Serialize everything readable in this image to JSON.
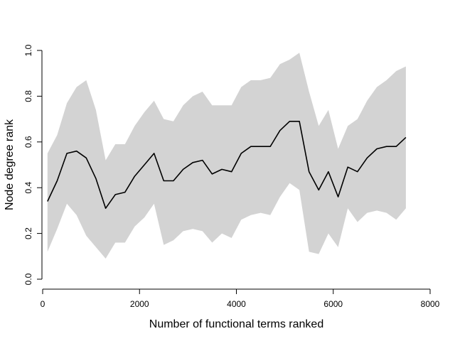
{
  "chart_data": {
    "type": "line",
    "title": "",
    "xlabel": "Number of functional terms ranked",
    "ylabel": "Node degree rank",
    "xlim": [
      0,
      8000
    ],
    "ylim": [
      0,
      1
    ],
    "x_ticks": [
      0,
      2000,
      4000,
      6000,
      8000
    ],
    "x_tick_labels": [
      "0",
      "2000",
      "4000",
      "6000",
      "8000"
    ],
    "y_ticks": [
      0,
      0.2,
      0.4,
      0.6,
      0.8,
      1
    ],
    "y_tick_labels": [
      "0.0",
      "0.2",
      "0.4",
      "0.6",
      "0.8",
      "1.0"
    ],
    "grid": false,
    "colors": {
      "band": "#d3d3d3",
      "line": "#000000"
    },
    "x": [
      100,
      300,
      500,
      700,
      900,
      1100,
      1300,
      1500,
      1700,
      1900,
      2100,
      2300,
      2500,
      2700,
      2900,
      3100,
      3300,
      3500,
      3700,
      3900,
      4100,
      4300,
      4500,
      4700,
      4900,
      5100,
      5300,
      5500,
      5700,
      5900,
      6100,
      6300,
      6500,
      6700,
      6900,
      7100,
      7300,
      7500
    ],
    "series": [
      {
        "values": [
          0.34,
          0.43,
          0.55,
          0.56,
          0.53,
          0.44,
          0.31,
          0.37,
          0.38,
          0.45,
          0.5,
          0.55,
          0.43,
          0.43,
          0.48,
          0.51,
          0.52,
          0.46,
          0.48,
          0.47,
          0.55,
          0.58,
          0.58,
          0.58,
          0.65,
          0.69,
          0.69,
          0.47,
          0.39,
          0.47,
          0.36,
          0.49,
          0.47,
          0.53,
          0.57,
          0.58,
          0.58,
          0.62
        ],
        "upper": [
          0.55,
          0.63,
          0.77,
          0.84,
          0.87,
          0.74,
          0.52,
          0.59,
          0.59,
          0.67,
          0.73,
          0.78,
          0.7,
          0.69,
          0.76,
          0.8,
          0.82,
          0.76,
          0.76,
          0.76,
          0.84,
          0.87,
          0.87,
          0.88,
          0.94,
          0.96,
          0.99,
          0.82,
          0.67,
          0.74,
          0.57,
          0.67,
          0.7,
          0.78,
          0.84,
          0.87,
          0.91,
          0.93
        ],
        "lower": [
          0.12,
          0.22,
          0.33,
          0.28,
          0.19,
          0.14,
          0.09,
          0.16,
          0.16,
          0.23,
          0.27,
          0.33,
          0.15,
          0.17,
          0.21,
          0.22,
          0.21,
          0.16,
          0.2,
          0.18,
          0.26,
          0.28,
          0.29,
          0.28,
          0.36,
          0.42,
          0.39,
          0.12,
          0.11,
          0.2,
          0.14,
          0.31,
          0.25,
          0.29,
          0.3,
          0.29,
          0.26,
          0.31
        ]
      }
    ]
  }
}
